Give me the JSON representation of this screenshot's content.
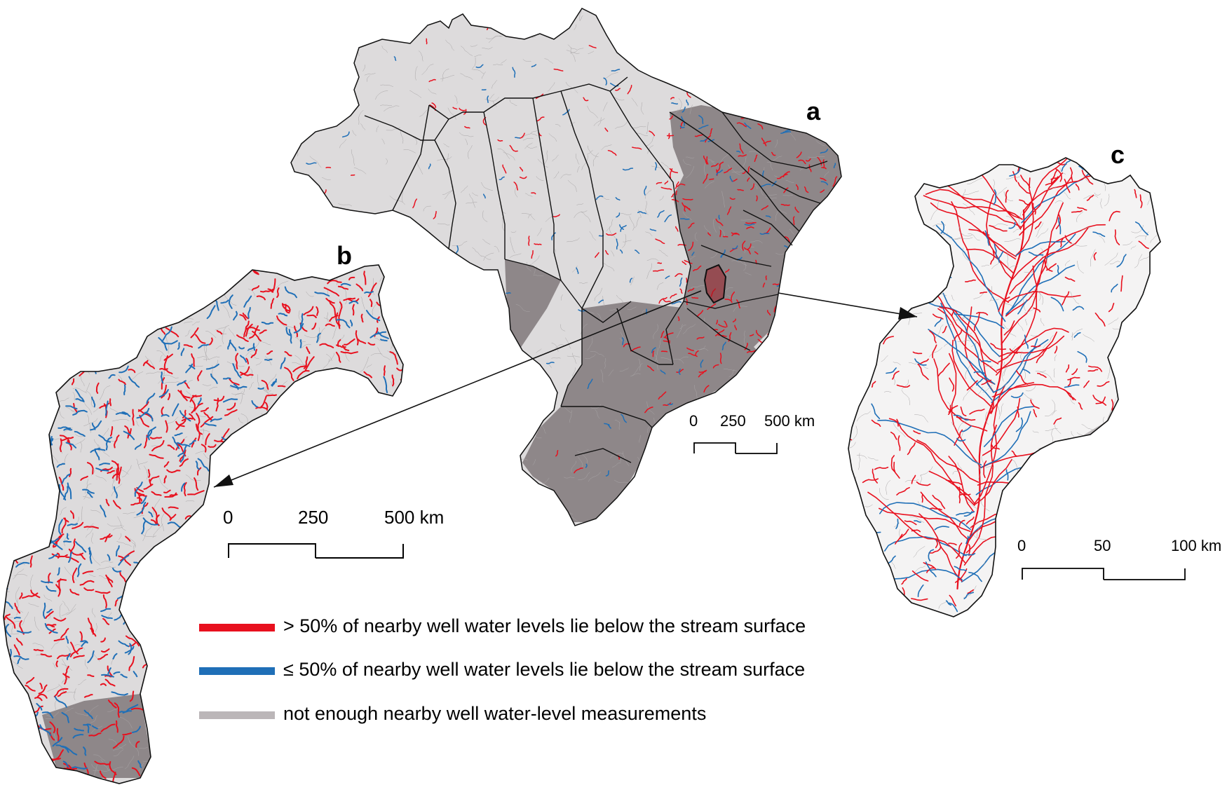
{
  "panel_labels": {
    "a": "a",
    "b": "b",
    "c": "c"
  },
  "colors": {
    "losing": "#e8101e",
    "gaining": "#1f6fb7",
    "insufficient": "#bbb6b8",
    "basin_dark": "#8e8789",
    "basin_light": "#dddbdc",
    "stream_grey": "#a9a6a7",
    "outline": "#111111"
  },
  "scale_a": {
    "t0": "0",
    "t1": "250",
    "t2": "500 km"
  },
  "scale_b": {
    "t0": "0",
    "t1": "250",
    "t2": "500 km"
  },
  "scale_c": {
    "t0": "0",
    "t1": "50",
    "t2": "100 km"
  },
  "legend": {
    "items": [
      {
        "label": "> 50% of nearby well water levels lie below the stream surface",
        "color": "#e8101e"
      },
      {
        "label": "≤ 50% of nearby well water levels lie below the stream surface",
        "color": "#1f6fb7"
      },
      {
        "label": "not enough nearby well water-level measurements",
        "color": "#bbb6b8"
      }
    ]
  }
}
